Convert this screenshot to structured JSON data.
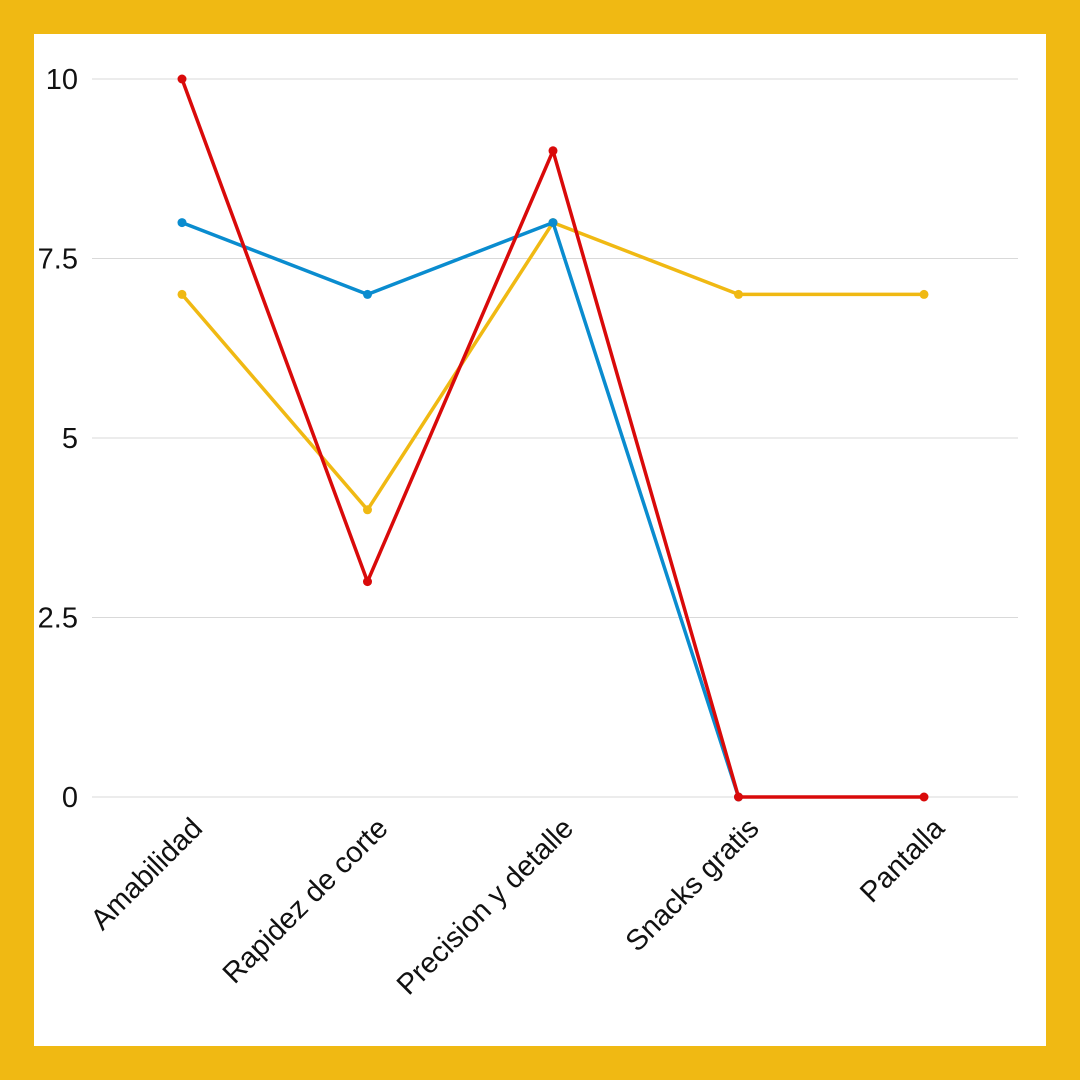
{
  "colors": {
    "frame": "#F0B913",
    "background": "#FFFFFF",
    "grid": "#D9D9D9"
  },
  "chart_data": {
    "type": "line",
    "title": "",
    "xlabel": "",
    "ylabel": "",
    "categories": [
      "Amabilidad",
      "Rapidez de corte",
      "Precision y detalle",
      "Snacks gratis",
      "Pantalla"
    ],
    "ylim": [
      0,
      10
    ],
    "y_ticks": [
      0,
      2.5,
      5,
      7.5,
      10
    ],
    "y_tick_labels": [
      "0",
      "2.5",
      "5",
      "7.5",
      "10"
    ],
    "grid": true,
    "legend": "none",
    "series": [
      {
        "color": "#F0B913",
        "values": [
          7,
          4,
          8,
          7,
          7
        ]
      },
      {
        "color": "#0A8CCF",
        "values": [
          8,
          7,
          8,
          0,
          null
        ]
      },
      {
        "color": "#D90A0A",
        "values": [
          10,
          3,
          9,
          0,
          0
        ]
      }
    ]
  }
}
